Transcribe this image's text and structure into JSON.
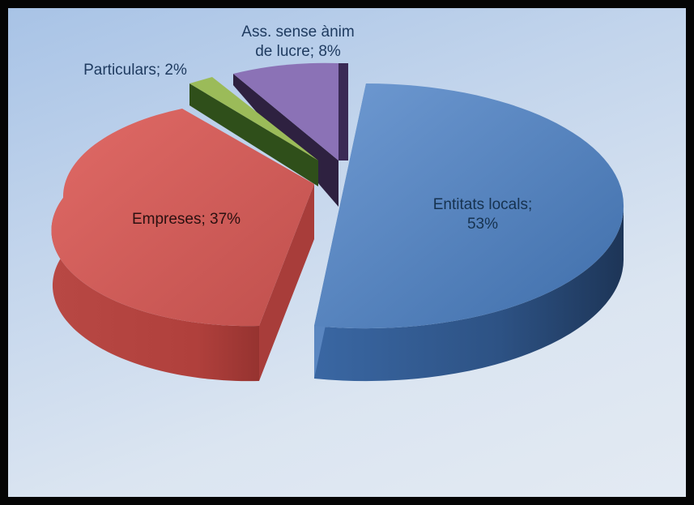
{
  "chart_data": {
    "type": "pie",
    "style": "3d-exploded",
    "slices": [
      {
        "label": "Entitats locals",
        "value": 53,
        "color": "#4f81bd"
      },
      {
        "label": "Empreses",
        "value": 37,
        "color": "#c0504d"
      },
      {
        "label": "Particulars",
        "value": 2,
        "color": "#9bbb59"
      },
      {
        "label": "Ass. sense ànim de lucre",
        "value": 8,
        "color": "#8064a2"
      }
    ],
    "data_labels": [
      {
        "lines": [
          "Entitats locals;",
          "53%"
        ]
      },
      {
        "lines": [
          "Empreses; 37%"
        ]
      },
      {
        "lines": [
          "Particulars; 2%"
        ]
      },
      {
        "lines": [
          "Ass. sense ànim",
          "de lucre; 8%"
        ]
      }
    ],
    "legend": "none"
  }
}
